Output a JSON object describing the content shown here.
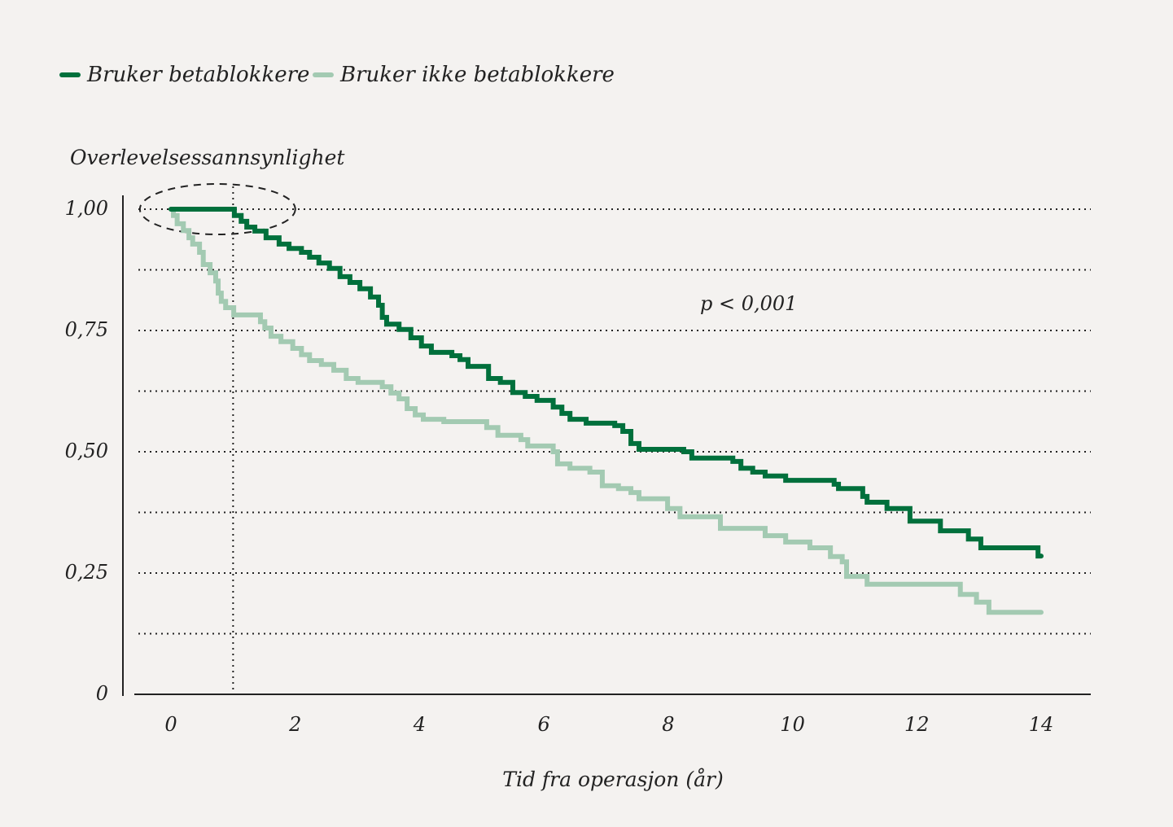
{
  "chart_data": {
    "type": "line",
    "step": true,
    "title": "",
    "xlabel": "Tid fra operasjon (år)",
    "ylabel": "Overlevelsessannsynlighet",
    "xlim": [
      0,
      14
    ],
    "ylim": [
      0,
      1
    ],
    "x_ticks": [
      0,
      2,
      4,
      6,
      8,
      10,
      12,
      14
    ],
    "x_tick_labels": [
      "0",
      "2",
      "4",
      "6",
      "8",
      "10",
      "12",
      "14"
    ],
    "y_ticks": [
      0,
      0.25,
      0.5,
      0.75,
      1.0
    ],
    "y_tick_labels": [
      "0",
      "0,25",
      "0,50",
      "0,75",
      "1,00"
    ],
    "grid": {
      "horizontal": true,
      "style": "dotted",
      "values": [
        0.125,
        0.25,
        0.375,
        0.5,
        0.625,
        0.75,
        0.875,
        1.0
      ]
    },
    "reference_line_x": 1,
    "highlight": {
      "shape": "dashed-ellipse",
      "x_range": [
        -0.5,
        2.0
      ],
      "y": 1.0
    },
    "annotation": "p < 0,001",
    "legend": {
      "placement": "top-left"
    },
    "series": [
      {
        "name": "Bruker betablokkere",
        "color": "#00703c",
        "x": [
          0,
          1.02,
          1.13,
          1.22,
          1.35,
          1.53,
          1.74,
          1.9,
          2.1,
          2.23,
          2.38,
          2.55,
          2.72,
          2.88,
          3.04,
          3.21,
          3.34,
          3.4,
          3.47,
          3.67,
          3.86,
          4.03,
          4.19,
          4.52,
          4.65,
          4.78,
          5.11,
          5.3,
          5.5,
          5.7,
          5.89,
          6.15,
          6.29,
          6.42,
          6.68,
          7.14,
          7.27,
          7.4,
          7.53,
          8.25,
          8.38,
          9.04,
          9.17,
          9.36,
          9.56,
          9.89,
          10.67,
          10.74,
          11.13,
          11.2,
          11.52,
          11.89,
          12.38,
          12.83,
          13.03,
          13.95,
          14.0
        ],
        "y": [
          1.0,
          0.987,
          0.975,
          0.963,
          0.955,
          0.941,
          0.928,
          0.919,
          0.911,
          0.901,
          0.889,
          0.878,
          0.861,
          0.849,
          0.836,
          0.819,
          0.802,
          0.777,
          0.763,
          0.752,
          0.735,
          0.718,
          0.705,
          0.698,
          0.69,
          0.676,
          0.651,
          0.643,
          0.622,
          0.614,
          0.606,
          0.592,
          0.579,
          0.567,
          0.559,
          0.554,
          0.542,
          0.517,
          0.505,
          0.5,
          0.487,
          0.48,
          0.466,
          0.458,
          0.45,
          0.441,
          0.433,
          0.424,
          0.408,
          0.396,
          0.383,
          0.357,
          0.337,
          0.32,
          0.302,
          0.285,
          0.285
        ]
      },
      {
        "name": "Bruker ikke betablokkere",
        "color": "#a3cab2",
        "x": [
          0,
          0.04,
          0.1,
          0.2,
          0.29,
          0.35,
          0.46,
          0.52,
          0.63,
          0.72,
          0.76,
          0.81,
          0.88,
          1.01,
          1.44,
          1.51,
          1.61,
          1.77,
          1.96,
          2.1,
          2.23,
          2.42,
          2.62,
          2.82,
          3.01,
          3.4,
          3.54,
          3.67,
          3.8,
          3.93,
          4.06,
          4.39,
          5.08,
          5.26,
          5.63,
          5.74,
          6.15,
          6.22,
          6.42,
          6.74,
          6.94,
          7.2,
          7.4,
          7.53,
          7.99,
          8.19,
          8.84,
          9.56,
          9.89,
          10.28,
          10.61,
          10.8,
          10.87,
          11.2,
          12.7,
          12.96,
          13.16,
          14.0
        ],
        "y": [
          1.0,
          0.987,
          0.97,
          0.956,
          0.941,
          0.928,
          0.911,
          0.886,
          0.869,
          0.852,
          0.827,
          0.81,
          0.797,
          0.782,
          0.768,
          0.755,
          0.738,
          0.727,
          0.713,
          0.7,
          0.688,
          0.68,
          0.668,
          0.651,
          0.643,
          0.634,
          0.621,
          0.609,
          0.589,
          0.576,
          0.567,
          0.562,
          0.55,
          0.534,
          0.525,
          0.512,
          0.5,
          0.475,
          0.466,
          0.458,
          0.43,
          0.424,
          0.416,
          0.403,
          0.383,
          0.366,
          0.342,
          0.327,
          0.314,
          0.302,
          0.284,
          0.273,
          0.243,
          0.227,
          0.206,
          0.19,
          0.169,
          0.169
        ]
      }
    ]
  }
}
